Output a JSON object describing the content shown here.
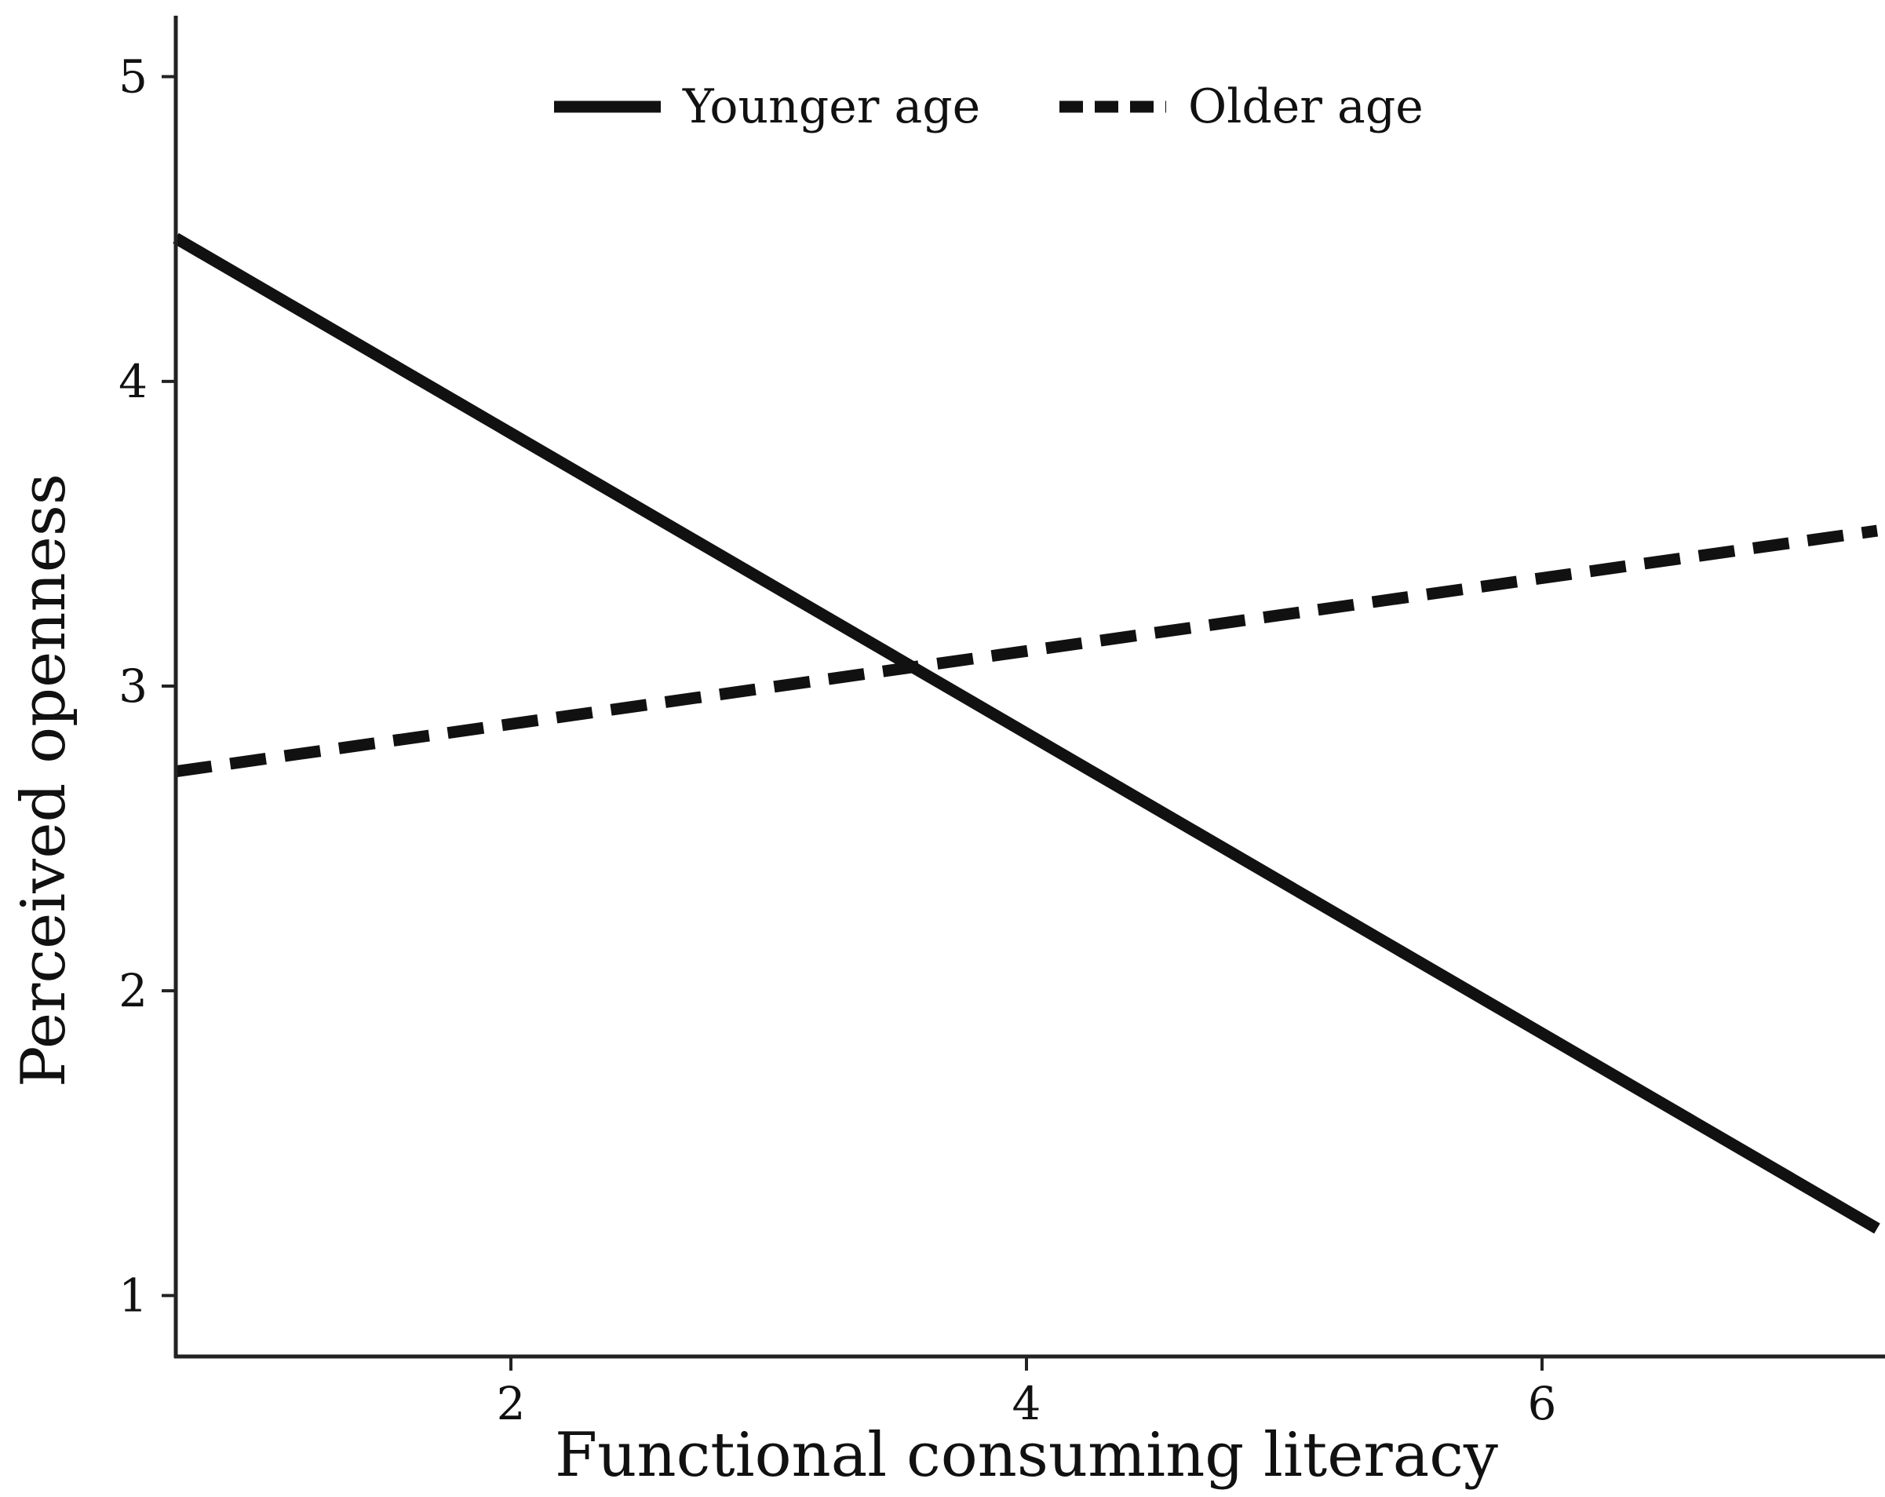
{
  "chart_data": {
    "type": "line",
    "title": "",
    "xlabel": "Functional consuming literacy",
    "ylabel": "Perceived openness",
    "xlim": [
      0.7,
      7.3
    ],
    "ylim": [
      0.8,
      5.2
    ],
    "x_ticks": [
      "2",
      "4",
      "6"
    ],
    "y_ticks": [
      "1",
      "2",
      "3",
      "4",
      "5"
    ],
    "grid": false,
    "legend_position": "top",
    "series": [
      {
        "name": "Younger age",
        "line_style": "solid",
        "color": "#111111",
        "x": [
          0.7,
          7.3
        ],
        "y": [
          4.47,
          1.22
        ]
      },
      {
        "name": "Older age",
        "line_style": "dashed",
        "color": "#111111",
        "x": [
          0.7,
          7.3
        ],
        "y": [
          2.72,
          3.51
        ]
      }
    ]
  }
}
